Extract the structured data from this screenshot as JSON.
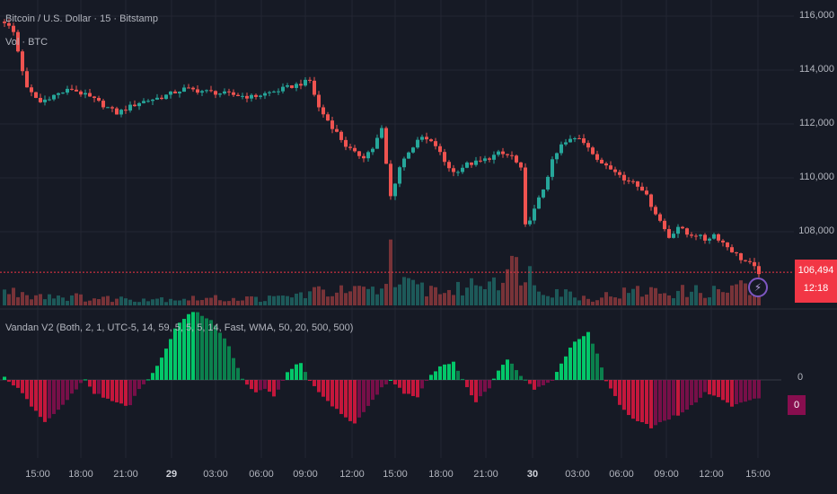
{
  "header": {
    "symbol_title": "Bitcoin / U.S. Dollar · 15 · Bitstamp",
    "volume_label": "Vol · BTC"
  },
  "indicator": {
    "title": "Vandan V2 (Both, 2, 1, UTC-5, 14, 59, 5, 5, 5, 14, Fast, WMA, 50, 20, 500, 500)",
    "zero_label": "0",
    "value_tag": "0"
  },
  "price_axis": [
    "116,000",
    "114,000",
    "112,000",
    "110,000",
    "108,000"
  ],
  "time_axis": [
    {
      "label": "15:00",
      "bold": false
    },
    {
      "label": "18:00",
      "bold": false
    },
    {
      "label": "21:00",
      "bold": false
    },
    {
      "label": "29",
      "bold": true
    },
    {
      "label": "03:00",
      "bold": false
    },
    {
      "label": "06:00",
      "bold": false
    },
    {
      "label": "09:00",
      "bold": false
    },
    {
      "label": "12:00",
      "bold": false
    },
    {
      "label": "15:00",
      "bold": false
    },
    {
      "label": "18:00",
      "bold": false
    },
    {
      "label": "21:00",
      "bold": false
    },
    {
      "label": "30",
      "bold": true
    },
    {
      "label": "03:00",
      "bold": false
    },
    {
      "label": "06:00",
      "bold": false
    },
    {
      "label": "09:00",
      "bold": false
    },
    {
      "label": "12:00",
      "bold": false
    },
    {
      "label": "15:00",
      "bold": false
    }
  ],
  "last_price": {
    "price": "106,494",
    "countdown": "12:18"
  },
  "colors": {
    "up": "#26a69a",
    "down": "#ef5350",
    "osc_up": "#00e676",
    "osc_down": "#ff1744",
    "bg": "#161a25",
    "grid": "#232632"
  },
  "chart_data": {
    "type": "candlestick",
    "y_range": [
      105800,
      116400
    ],
    "close_path": [
      [
        0,
        115800
      ],
      [
        2,
        115400
      ],
      [
        5,
        113300
      ],
      [
        8,
        112800
      ],
      [
        10,
        113000
      ],
      [
        15,
        113300
      ],
      [
        20,
        112900
      ],
      [
        25,
        112400
      ],
      [
        30,
        112800
      ],
      [
        35,
        113000
      ],
      [
        40,
        113300
      ],
      [
        45,
        113200
      ],
      [
        50,
        113100
      ],
      [
        55,
        113000
      ],
      [
        60,
        113200
      ],
      [
        64,
        113400
      ],
      [
        68,
        113600
      ],
      [
        70,
        112600
      ],
      [
        73,
        111900
      ],
      [
        76,
        111200
      ],
      [
        78,
        110900
      ],
      [
        80,
        110800
      ],
      [
        82,
        111100
      ],
      [
        84,
        111800
      ],
      [
        85,
        110500
      ],
      [
        86,
        109300
      ],
      [
        88,
        110400
      ],
      [
        90,
        111000
      ],
      [
        93,
        111500
      ],
      [
        96,
        111200
      ],
      [
        98,
        110600
      ],
      [
        100,
        110200
      ],
      [
        103,
        110500
      ],
      [
        106,
        110600
      ],
      [
        110,
        110900
      ],
      [
        113,
        110800
      ],
      [
        115,
        110300
      ],
      [
        116,
        108200
      ],
      [
        118,
        108800
      ],
      [
        120,
        109600
      ],
      [
        122,
        110600
      ],
      [
        124,
        111200
      ],
      [
        126,
        111400
      ],
      [
        128,
        111500
      ],
      [
        130,
        111200
      ],
      [
        132,
        110600
      ],
      [
        134,
        110500
      ],
      [
        136,
        110300
      ],
      [
        138,
        109900
      ],
      [
        140,
        109900
      ],
      [
        142,
        109600
      ],
      [
        144,
        109000
      ],
      [
        146,
        108400
      ],
      [
        148,
        107800
      ],
      [
        150,
        108200
      ],
      [
        152,
        107900
      ],
      [
        154,
        107900
      ],
      [
        156,
        107700
      ],
      [
        158,
        107900
      ],
      [
        160,
        107600
      ],
      [
        162,
        107300
      ],
      [
        164,
        107000
      ],
      [
        166,
        106800
      ],
      [
        168,
        106494
      ]
    ],
    "volume_profile": [
      [
        0,
        2
      ],
      [
        20,
        1
      ],
      [
        40,
        1
      ],
      [
        60,
        1
      ],
      [
        70,
        2
      ],
      [
        84,
        2
      ],
      [
        86,
        8
      ],
      [
        88,
        3
      ],
      [
        100,
        2
      ],
      [
        116,
        6
      ],
      [
        118,
        3
      ],
      [
        130,
        1
      ],
      [
        140,
        2
      ],
      [
        148,
        2
      ],
      [
        155,
        2
      ],
      [
        160,
        2
      ],
      [
        163,
        3
      ],
      [
        166,
        2
      ],
      [
        168,
        2
      ]
    ],
    "oscillator": [
      [
        0,
        0.05
      ],
      [
        3,
        -0.2
      ],
      [
        6,
        -0.6
      ],
      [
        9,
        -1.0
      ],
      [
        12,
        -0.7
      ],
      [
        16,
        -0.2
      ],
      [
        18,
        0.0
      ],
      [
        20,
        -0.3
      ],
      [
        24,
        -0.5
      ],
      [
        28,
        -0.6
      ],
      [
        30,
        -0.2
      ],
      [
        32,
        0.0
      ],
      [
        35,
        0.5
      ],
      [
        38,
        1.2
      ],
      [
        42,
        1.6
      ],
      [
        46,
        1.4
      ],
      [
        50,
        0.8
      ],
      [
        53,
        0.0
      ],
      [
        56,
        -0.3
      ],
      [
        58,
        -0.2
      ],
      [
        60,
        -0.4
      ],
      [
        63,
        0.2
      ],
      [
        66,
        0.4
      ],
      [
        68,
        0.0
      ],
      [
        71,
        -0.4
      ],
      [
        75,
        -0.8
      ],
      [
        78,
        -1.0
      ],
      [
        81,
        -0.6
      ],
      [
        84,
        -0.2
      ],
      [
        86,
        0.0
      ],
      [
        89,
        -0.3
      ],
      [
        92,
        -0.4
      ],
      [
        94,
        0.0
      ],
      [
        97,
        0.3
      ],
      [
        100,
        0.4
      ],
      [
        102,
        0.0
      ],
      [
        105,
        -0.5
      ],
      [
        108,
        -0.2
      ],
      [
        110,
        0.2
      ],
      [
        112,
        0.5
      ],
      [
        114,
        0.2
      ],
      [
        116,
        0.0
      ],
      [
        118,
        -0.2
      ],
      [
        120,
        -0.1
      ],
      [
        122,
        0.0
      ],
      [
        124,
        0.4
      ],
      [
        127,
        0.9
      ],
      [
        130,
        1.1
      ],
      [
        132,
        0.6
      ],
      [
        134,
        0.0
      ],
      [
        137,
        -0.6
      ],
      [
        140,
        -0.9
      ],
      [
        144,
        -1.1
      ],
      [
        148,
        -0.9
      ],
      [
        152,
        -0.7
      ],
      [
        156,
        -0.3
      ],
      [
        159,
        -0.4
      ],
      [
        162,
        -0.6
      ],
      [
        165,
        -0.5
      ],
      [
        168,
        -0.4
      ]
    ]
  }
}
